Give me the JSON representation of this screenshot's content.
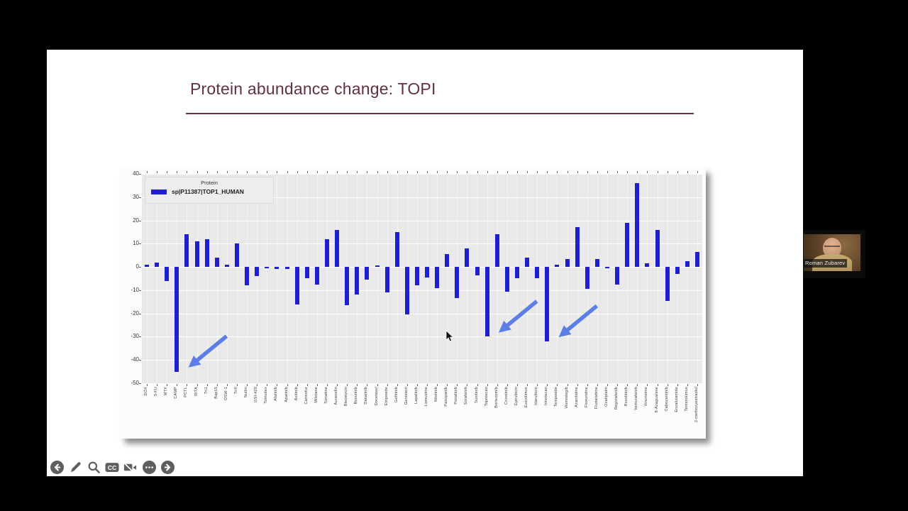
{
  "slide": {
    "title": "Protein abundance change: TOPI"
  },
  "chart_data": {
    "type": "bar",
    "title": "",
    "xlabel": "",
    "ylabel": "",
    "ylim": [
      -50,
      40
    ],
    "yticks": [
      40,
      30,
      20,
      10,
      0,
      -10,
      -20,
      -30,
      -40,
      -50
    ],
    "grid": true,
    "legend_position": "upper-left",
    "legend": {
      "title": "Protein",
      "series_label": "sp|P11387|TOP1_HUMAN"
    },
    "bar_color": "#1f1fd0",
    "plot_bg": "#e9e9e9",
    "arrow_color": "#5b7fe6",
    "categories": [
      "DOX",
      "5-FU",
      "MTX",
      "CAMP",
      "PCTL",
      "RITA",
      "Tri1",
      "Bap15",
      "OSW-1",
      "TriII",
      "Nutlin",
      "OSI-420",
      "Tomudex",
      "Afatinib",
      "Apatinib",
      "Axitinib",
      "Carmofur",
      "Mitotane",
      "Tomatine",
      "Auranofin",
      "Bleomycin",
      "Bosutinib",
      "Dasatinib",
      "Docetaxel",
      "Etoposide",
      "Gefitinib",
      "Genistein",
      "Lapatinib",
      "Lomustine",
      "Nilotinib",
      "Pazopanib",
      "Ponatinib",
      "Sorafenib",
      "Sunitinib",
      "Topotecan",
      "Bortezomib",
      "Crizotinib",
      "Epirubicin",
      "Everolimus",
      "Idarubicin",
      "Irinotecan",
      "Teniposide",
      "Vismodegib",
      "Azacitidine",
      "Floxuridine",
      "Fludarabine",
      "Oxaliplatin",
      "Regorafenib",
      "Ruxolitinib",
      "Vemurafenib",
      "Vincristine",
      "8-Azaguanine",
      "Cabozantinib",
      "Enzalutamide",
      "Temsirolimus",
      "2-methoxyestradiol"
    ],
    "values": [
      1,
      2,
      -6,
      -45,
      14,
      11,
      12,
      4,
      1,
      10,
      -8,
      -4,
      -0.5,
      -1,
      -1,
      -16,
      -5,
      -7.5,
      12,
      16,
      -16.5,
      -12,
      -5.5,
      0.5,
      -11,
      15,
      -20.5,
      -8,
      -4.5,
      -9,
      5.5,
      -13.5,
      8,
      -3.5,
      -30,
      14,
      -10.5,
      -5,
      4,
      -5,
      -32,
      1,
      3.5,
      17,
      -9.5,
      3.5,
      -0.5,
      -7.5,
      19,
      36,
      1.5,
      16,
      -14.5,
      -3,
      2.5,
      6.5
    ],
    "annotations": [
      {
        "type": "arrow",
        "points_to": "CAMP"
      },
      {
        "type": "arrow",
        "points_to": "Topotecan"
      },
      {
        "type": "arrow",
        "points_to": "Irinotecan"
      }
    ]
  },
  "participant": {
    "name": "Roman Zubarev"
  },
  "toolbar": {
    "cc_label": "CC",
    "icons": [
      {
        "name": "previous"
      },
      {
        "name": "annotate-pencil"
      },
      {
        "name": "zoom-search"
      },
      {
        "name": "closed-captions"
      },
      {
        "name": "camera-off"
      },
      {
        "name": "more-options"
      },
      {
        "name": "next"
      }
    ]
  },
  "colors": {
    "title": "#63303f",
    "bar": "#1f1fd0",
    "arrow": "#5b7fe6",
    "toolbar_icon": "#5f5f5f"
  }
}
